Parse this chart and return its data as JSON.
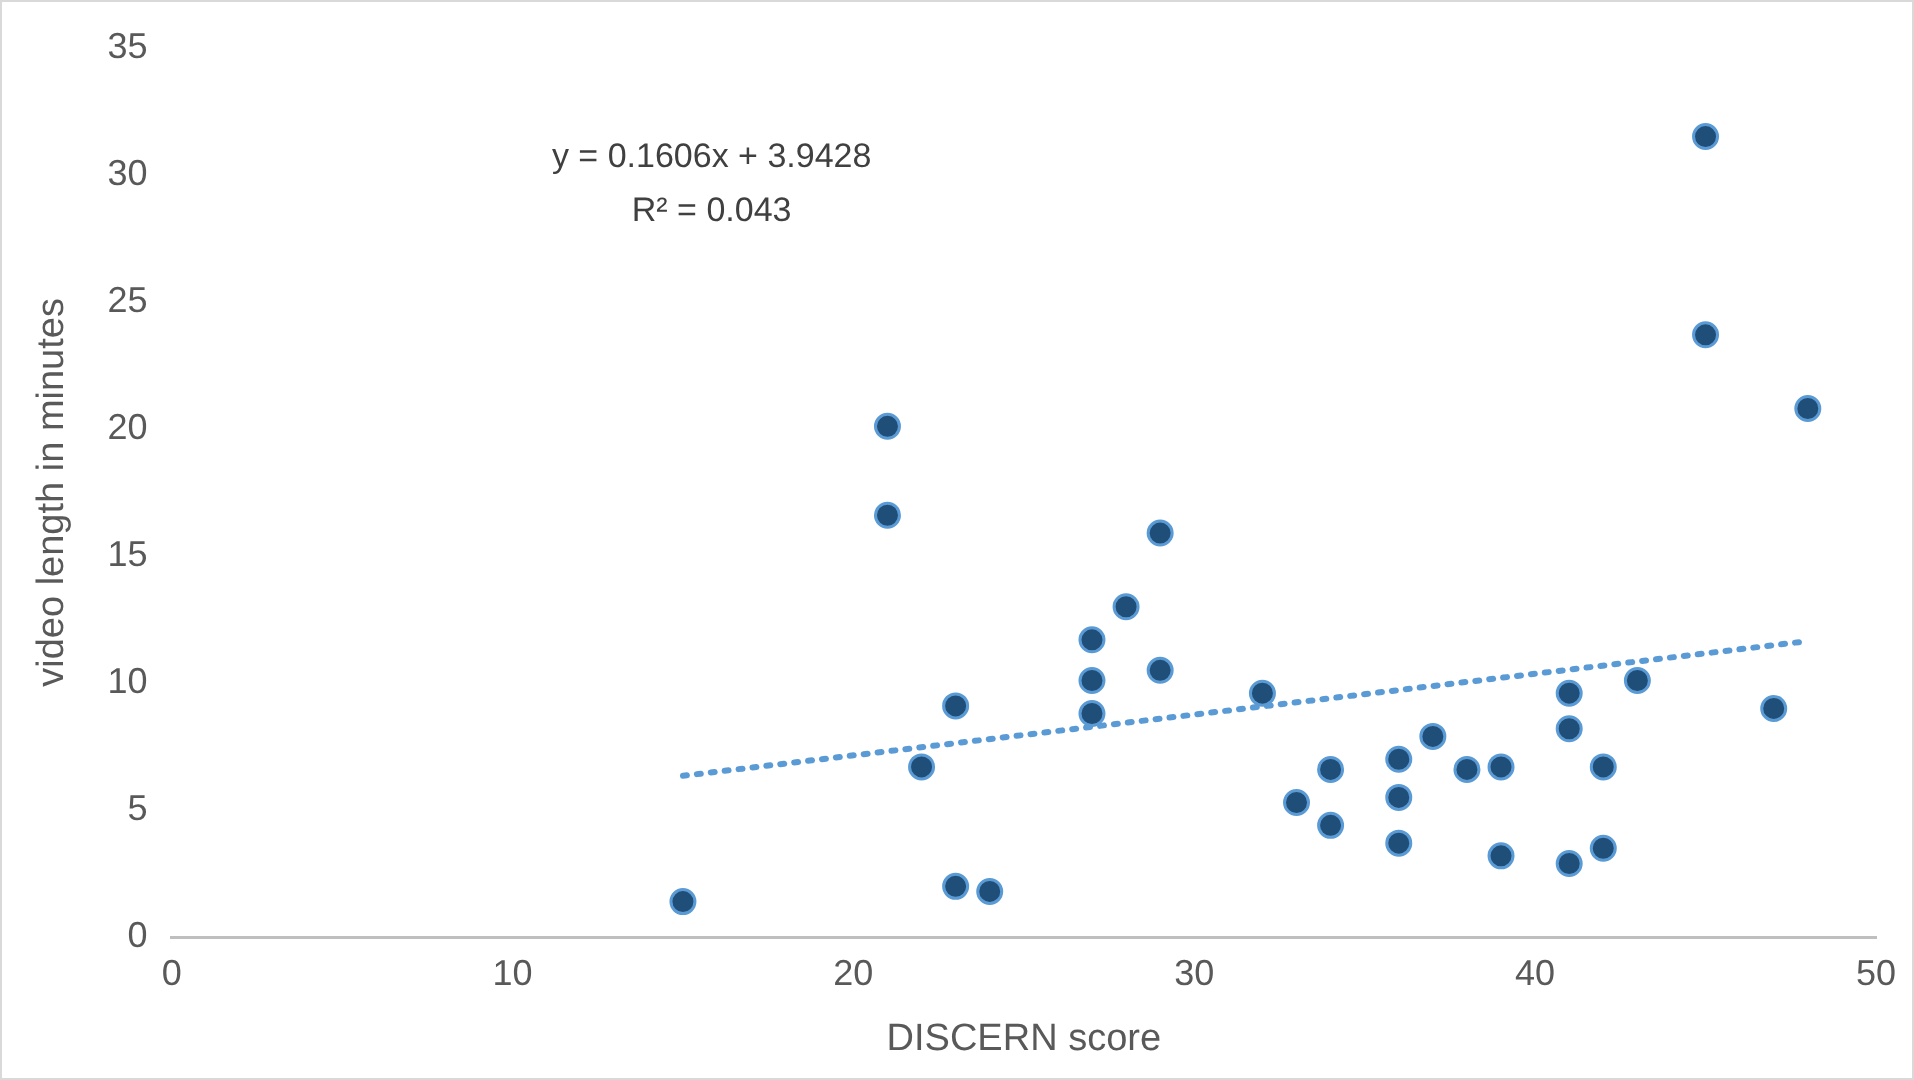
{
  "chart_data": {
    "type": "scatter",
    "xlabel": "DISCERN score",
    "ylabel": "video length in minutes",
    "xlim": [
      0,
      50
    ],
    "xticks": [
      0,
      10,
      20,
      30,
      40,
      50
    ],
    "ylim": [
      0,
      35
    ],
    "yticks": [
      0,
      5,
      10,
      15,
      20,
      25,
      30,
      35
    ],
    "grid": false,
    "legend": false,
    "marker": "circle",
    "annotations": [
      "y = 0.1606x + 3.9428",
      "R² = 0.043"
    ],
    "series": [
      {
        "color": "#1f4e79",
        "x": [
          15,
          21,
          21,
          22,
          23,
          23,
          24,
          27,
          27,
          27,
          28,
          29,
          29,
          32,
          33,
          34,
          34,
          36,
          36,
          36,
          37,
          38,
          39,
          39,
          41,
          41,
          41,
          42,
          42,
          43,
          45,
          45,
          47,
          48
        ],
        "values": [
          1.4,
          20.1,
          16.6,
          6.7,
          9.1,
          2.0,
          1.8,
          11.7,
          10.1,
          8.8,
          13.0,
          15.9,
          10.5,
          9.6,
          5.3,
          6.6,
          4.4,
          7.0,
          5.5,
          3.7,
          7.9,
          6.6,
          6.7,
          3.2,
          9.6,
          8.2,
          2.9,
          6.7,
          3.5,
          10.1,
          31.5,
          23.7,
          9.0,
          20.8
        ]
      },
      {
        "type": "line",
        "color": "#5b9bd5",
        "line_style": "dotted",
        "marker": "none",
        "x": [
          15,
          48
        ],
        "values": [
          6.35,
          11.65
        ]
      }
    ]
  }
}
